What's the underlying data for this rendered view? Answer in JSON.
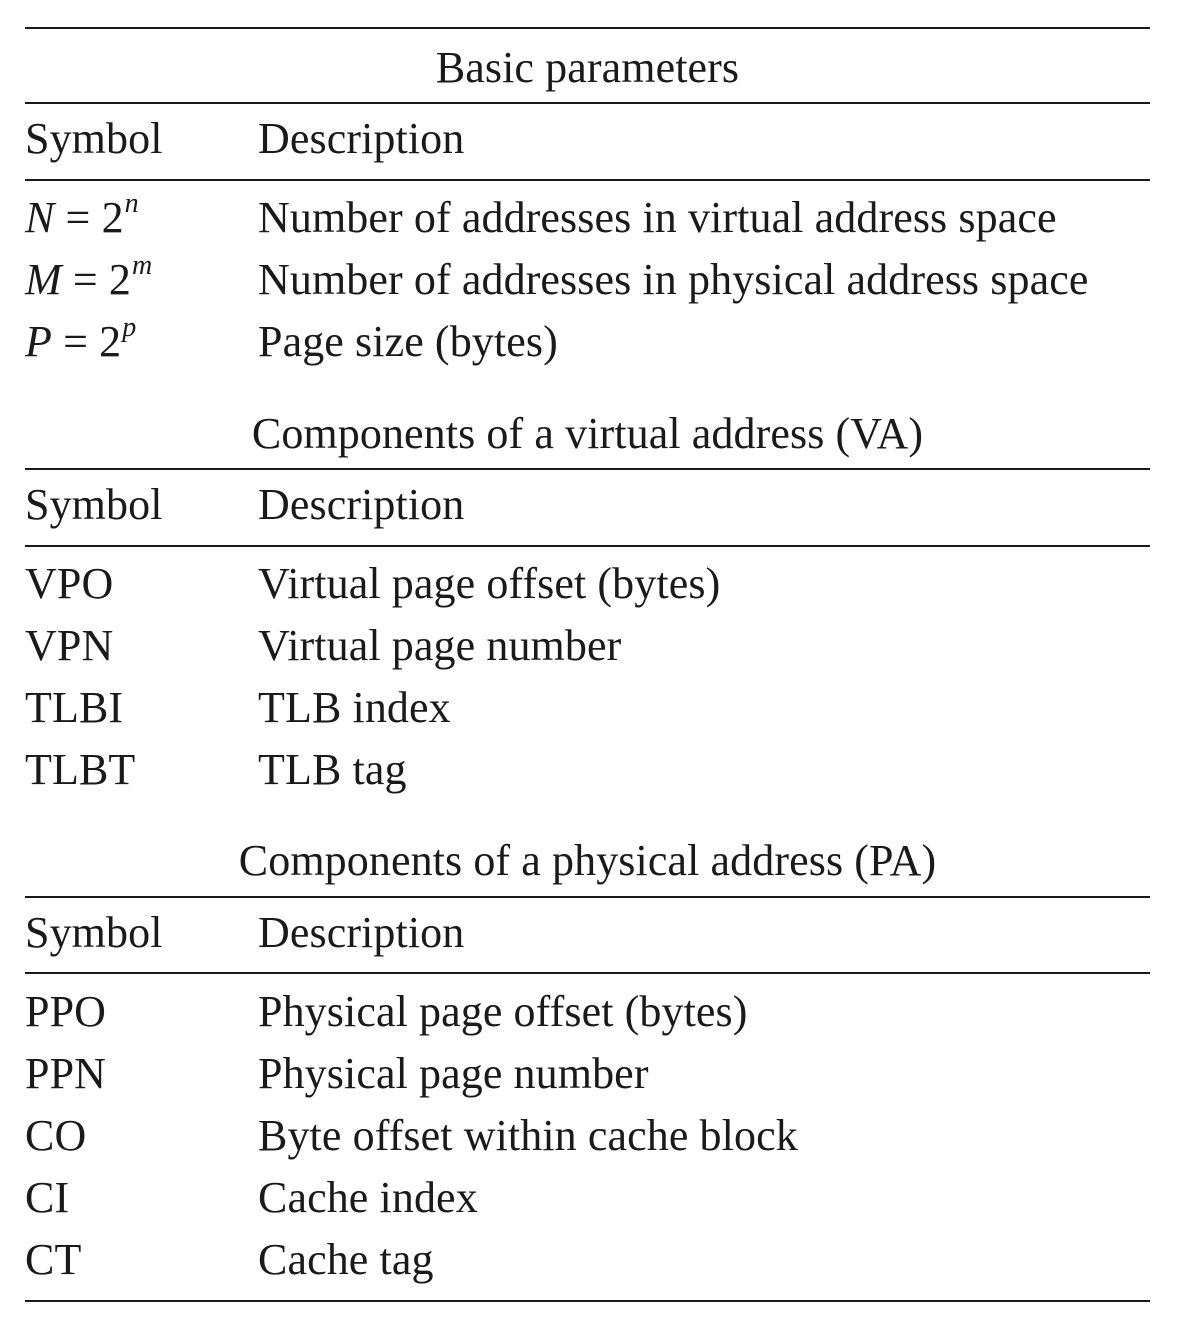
{
  "sections": [
    {
      "title": "Basic parameters",
      "header": {
        "symbol": "Symbol",
        "description": "Description"
      },
      "rows": [
        {
          "symbol_base": "N",
          "symbol_eq": " = 2",
          "symbol_exp": "n",
          "description": "Number of addresses in virtual address space"
        },
        {
          "symbol_base": "M",
          "symbol_eq": " = 2",
          "symbol_exp": "m",
          "description": "Number of addresses in physical address space"
        },
        {
          "symbol_base": "P",
          "symbol_eq": " = 2",
          "symbol_exp": "p",
          "description": "Page size (bytes)"
        }
      ]
    },
    {
      "title": "Components of a virtual address (VA)",
      "header": {
        "symbol": "Symbol",
        "description": "Description"
      },
      "rows": [
        {
          "symbol": "VPO",
          "description": "Virtual page offset (bytes)"
        },
        {
          "symbol": "VPN",
          "description": "Virtual page number"
        },
        {
          "symbol": "TLBI",
          "description": "TLB index"
        },
        {
          "symbol": "TLBT",
          "description": "TLB tag"
        }
      ]
    },
    {
      "title": "Components of a physical address (PA)",
      "header": {
        "symbol": "Symbol",
        "description": "Description"
      },
      "rows": [
        {
          "symbol": "PPO",
          "description": "Physical page offset (bytes)"
        },
        {
          "symbol": "PPN",
          "description": "Physical page number"
        },
        {
          "symbol": "CO",
          "description": "Byte offset within cache block"
        },
        {
          "symbol": "CI",
          "description": "Cache index"
        },
        {
          "symbol": "CT",
          "description": "Cache tag"
        }
      ]
    }
  ]
}
